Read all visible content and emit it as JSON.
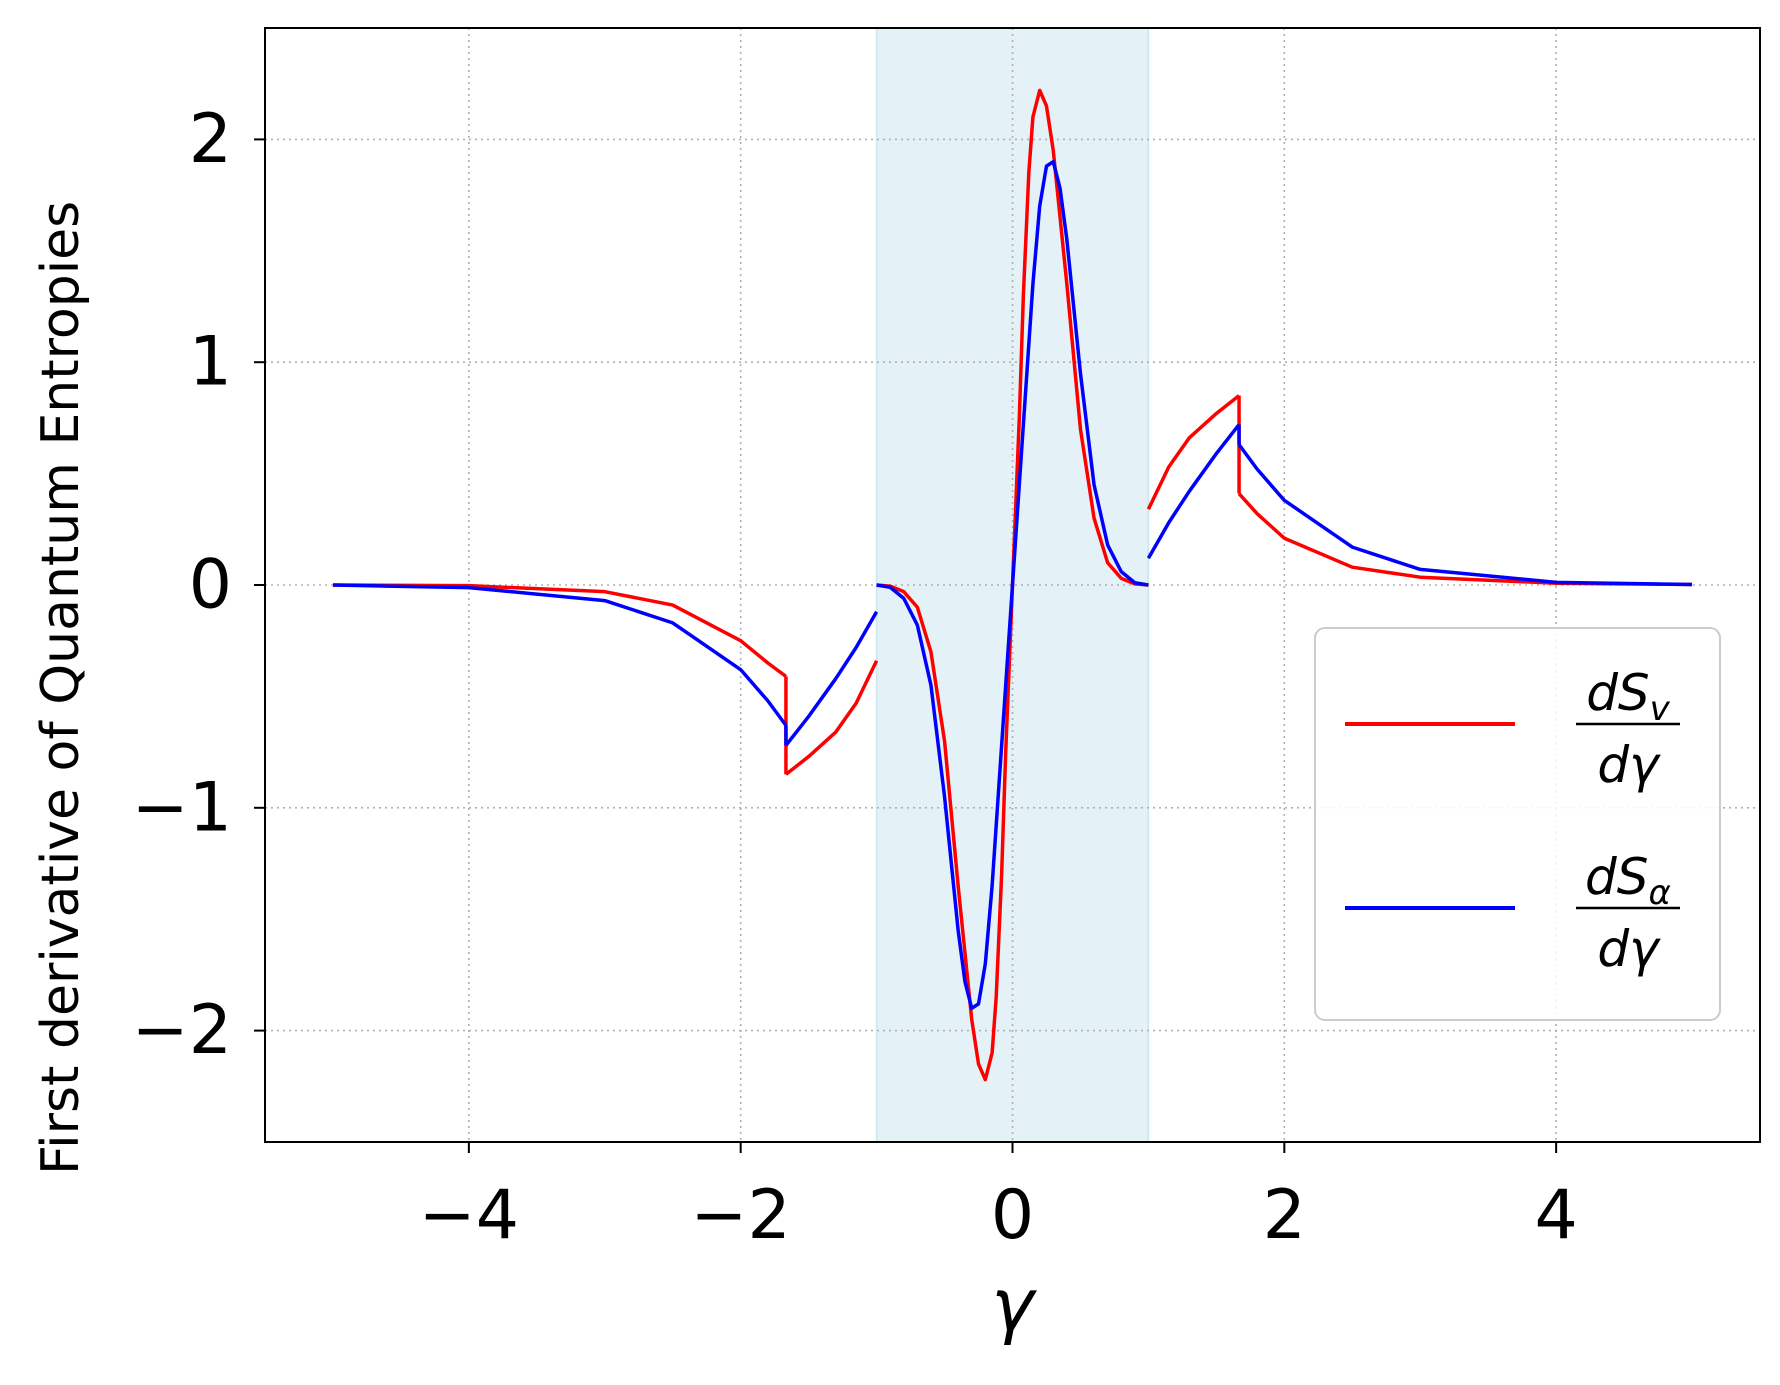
{
  "chart_data": {
    "type": "line",
    "title": "",
    "xlabel": "γ",
    "ylabel": "First derivative of Quantum Entropies",
    "xlim": [
      -5.5,
      5.5
    ],
    "ylim": [
      -2.5,
      2.5
    ],
    "x_ticks": [
      -4,
      -2,
      0,
      2,
      4
    ],
    "y_ticks": [
      -2,
      -1,
      0,
      1,
      2
    ],
    "x_tick_labels": [
      "−4",
      "−2",
      "0",
      "2",
      "4"
    ],
    "y_tick_labels": [
      "−2",
      "−1",
      "0",
      "1",
      "2"
    ],
    "grid": true,
    "shaded_region": {
      "x_range": [
        -1,
        1
      ],
      "color": "#add8e6"
    },
    "legend": {
      "placement": "center-right",
      "entries": [
        {
          "numerator_base": "dS",
          "numerator_sub": "v",
          "denominator": "dγ",
          "color": "#ff0000"
        },
        {
          "numerator_base": "dS",
          "numerator_sub": "α",
          "denominator": "dγ",
          "color": "#0000ff"
        }
      ]
    },
    "series": [
      {
        "color": "#ff0000",
        "segments": [
          {
            "x": [
              -5,
              -4,
              -3,
              -2.5,
              -2,
              -1.8,
              -1.667
            ],
            "y": [
              0,
              -0.003,
              -0.03,
              -0.09,
              -0.25,
              -0.35,
              -0.41
            ]
          },
          {
            "x": [
              -1.667,
              -1.667
            ],
            "y": [
              -0.41,
              -0.85
            ]
          },
          {
            "x": [
              -1.667,
              -1.5,
              -1.3,
              -1.15,
              -1.0
            ],
            "y": [
              -0.85,
              -0.77,
              -0.66,
              -0.53,
              -0.34
            ]
          },
          {
            "x": [
              -1.0,
              -0.9,
              -0.8,
              -0.7,
              -0.6,
              -0.5,
              -0.4,
              -0.3,
              -0.25,
              -0.2,
              -0.15,
              -0.12,
              -0.08,
              -0.05,
              0,
              0.05,
              0.08,
              0.12,
              0.15,
              0.2,
              0.25,
              0.3,
              0.4,
              0.5,
              0.6,
              0.7,
              0.8,
              0.9,
              1.0
            ],
            "y": [
              0,
              -0.005,
              -0.03,
              -0.1,
              -0.3,
              -0.7,
              -1.35,
              -1.95,
              -2.15,
              -2.22,
              -2.1,
              -1.85,
              -1.3,
              -0.75,
              0,
              0.75,
              1.3,
              1.85,
              2.1,
              2.22,
              2.15,
              1.95,
              1.35,
              0.7,
              0.3,
              0.1,
              0.03,
              0.005,
              0
            ]
          },
          {
            "x": [
              1.0,
              1.15,
              1.3,
              1.5,
              1.667
            ],
            "y": [
              0.34,
              0.53,
              0.66,
              0.77,
              0.85
            ]
          },
          {
            "x": [
              1.667,
              1.667
            ],
            "y": [
              0.85,
              0.41
            ]
          },
          {
            "x": [
              1.667,
              1.8,
              2.0,
              2.5,
              3.0,
              4.0,
              5.0
            ],
            "y": [
              0.41,
              0.32,
              0.21,
              0.08,
              0.035,
              0.008,
              0.002
            ]
          }
        ]
      },
      {
        "color": "#0000ff",
        "segments": [
          {
            "x": [
              -5,
              -4,
              -3,
              -2.5,
              -2,
              -1.8,
              -1.667
            ],
            "y": [
              0,
              -0.012,
              -0.07,
              -0.17,
              -0.38,
              -0.52,
              -0.63
            ]
          },
          {
            "x": [
              -1.667,
              -1.667
            ],
            "y": [
              -0.63,
              -0.72
            ]
          },
          {
            "x": [
              -1.667,
              -1.5,
              -1.3,
              -1.15,
              -1.0
            ],
            "y": [
              -0.72,
              -0.59,
              -0.42,
              -0.28,
              -0.12
            ]
          },
          {
            "x": [
              -1.0,
              -0.9,
              -0.8,
              -0.7,
              -0.6,
              -0.5,
              -0.4,
              -0.35,
              -0.3,
              -0.25,
              -0.2,
              -0.15,
              -0.1,
              -0.05,
              0,
              0.05,
              0.1,
              0.15,
              0.2,
              0.25,
              0.3,
              0.35,
              0.4,
              0.5,
              0.6,
              0.7,
              0.8,
              0.9,
              1.0
            ],
            "y": [
              0,
              -0.01,
              -0.06,
              -0.18,
              -0.45,
              -0.95,
              -1.55,
              -1.78,
              -1.9,
              -1.88,
              -1.7,
              -1.35,
              -0.9,
              -0.45,
              0,
              0.45,
              0.9,
              1.35,
              1.7,
              1.88,
              1.9,
              1.78,
              1.55,
              0.95,
              0.45,
              0.18,
              0.06,
              0.01,
              0
            ]
          },
          {
            "x": [
              1.0,
              1.15,
              1.3,
              1.5,
              1.667
            ],
            "y": [
              0.12,
              0.28,
              0.42,
              0.59,
              0.72
            ]
          },
          {
            "x": [
              1.667,
              1.667
            ],
            "y": [
              0.72,
              0.63
            ]
          },
          {
            "x": [
              1.667,
              1.8,
              2.0,
              2.5,
              3.0,
              4.0,
              5.0
            ],
            "y": [
              0.63,
              0.52,
              0.38,
              0.17,
              0.07,
              0.012,
              0.002
            ]
          }
        ]
      }
    ]
  }
}
